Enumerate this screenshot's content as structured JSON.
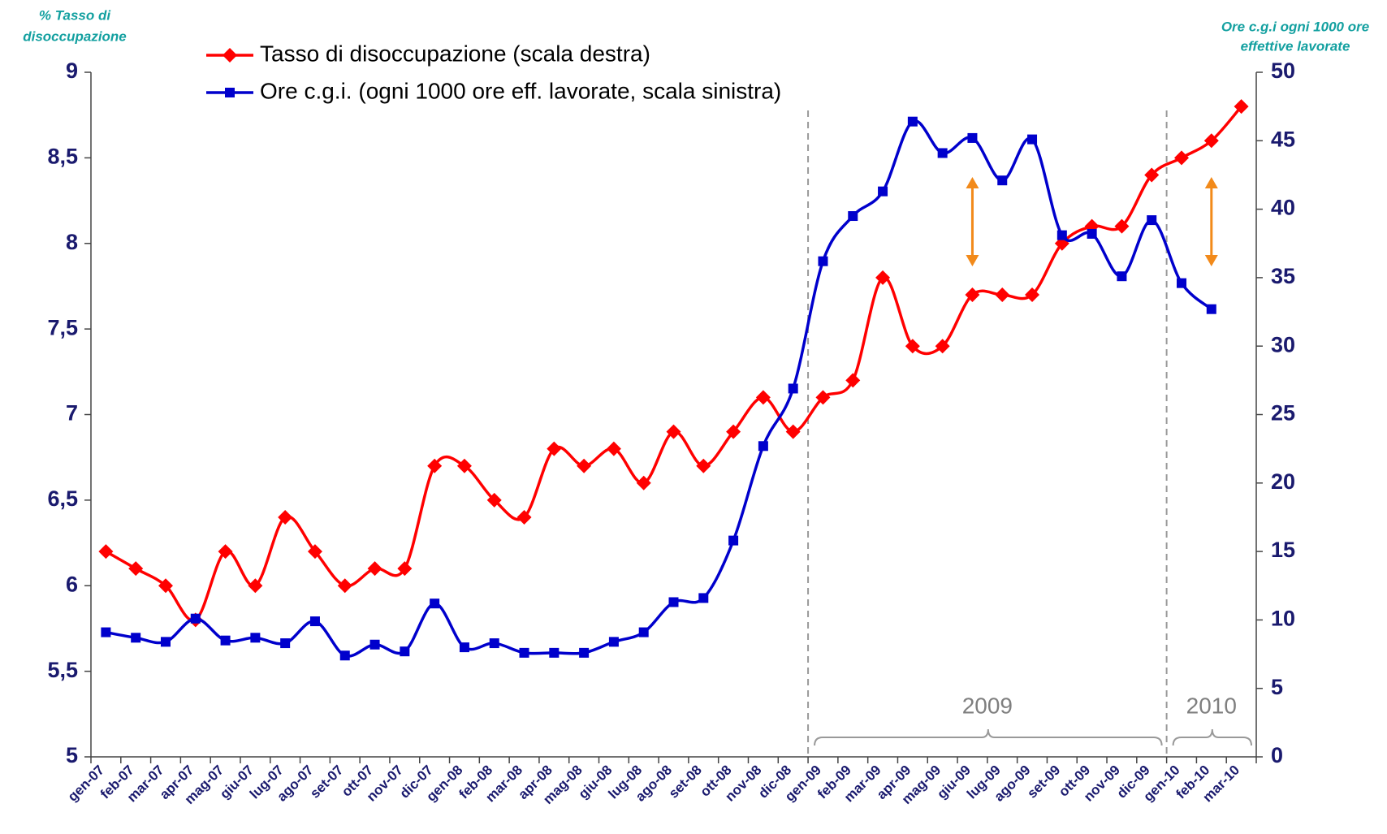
{
  "chart_data": {
    "type": "line",
    "ylabel_lines": [
      "% Tasso di",
      "disoccupazione"
    ],
    "y2label_lines": [
      "Ore c.g.i ogni 1000 ore",
      "effettive lavorate"
    ],
    "categories": [
      "gen-07",
      "feb-07",
      "mar-07",
      "apr-07",
      "mag-07",
      "giu-07",
      "lug-07",
      "ago-07",
      "set-07",
      "ott-07",
      "nov-07",
      "dic-07",
      "gen-08",
      "feb-08",
      "mar-08",
      "apr-08",
      "mag-08",
      "giu-08",
      "lug-08",
      "ago-08",
      "set-08",
      "ott-08",
      "nov-08",
      "dic-08",
      "gen-09",
      "feb-09",
      "mar-09",
      "apr-09",
      "mag-09",
      "giu-09",
      "lug-09",
      "ago-09",
      "set-09",
      "ott-09",
      "nov-09",
      "dic-09",
      "gen-10",
      "feb-10",
      "mar-10"
    ],
    "series": [
      {
        "name": "Tasso di disoccupazione (scala destra)",
        "color": "#ff0000",
        "marker": "diamond",
        "values": [
          6.2,
          6.1,
          6.0,
          5.8,
          6.2,
          6.0,
          6.4,
          6.2,
          6.0,
          6.1,
          6.1,
          6.7,
          6.7,
          6.5,
          6.4,
          6.8,
          6.7,
          6.8,
          6.6,
          6.9,
          6.7,
          6.9,
          7.1,
          6.9,
          7.1,
          7.2,
          7.8,
          7.4,
          7.4,
          7.7,
          7.7,
          7.7,
          8.0,
          8.1,
          8.1,
          8.4,
          8.5,
          8.6,
          8.8
        ]
      },
      {
        "name": "Ore c.g.i. (ogni 1000 ore eff. lavorate, scala sinistra)",
        "color": "#0000cc",
        "marker": "square",
        "axis": "y2",
        "values": [
          9.1,
          8.7,
          8.4,
          10.1,
          8.5,
          8.7,
          8.3,
          9.9,
          7.4,
          8.2,
          7.7,
          11.2,
          8.0,
          8.3,
          7.6,
          7.6,
          7.6,
          8.4,
          9.1,
          11.3,
          11.6,
          15.8,
          22.7,
          26.9,
          36.2,
          39.5,
          41.3,
          46.4,
          44.1,
          45.2,
          42.1,
          45.1,
          38.1,
          38.2,
          35.1,
          39.2,
          34.6,
          32.7,
          null
        ]
      }
    ],
    "ylim": [
      5,
      9
    ],
    "yticks": [
      5,
      {
        "value": 5.5,
        "label": "5,5"
      },
      6,
      {
        "value": 6.5,
        "label": "6,5"
      },
      7,
      {
        "value": 7.5,
        "label": "7,5"
      },
      8,
      {
        "value": 8.5,
        "label": "8,5"
      },
      9
    ],
    "y2lim": [
      0,
      50
    ],
    "y2ticks": [
      0,
      5,
      10,
      15,
      20,
      25,
      30,
      35,
      40,
      45,
      50
    ],
    "annotations": [
      "2009",
      "2010"
    ]
  }
}
